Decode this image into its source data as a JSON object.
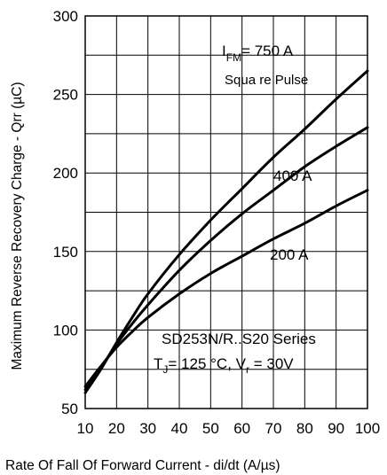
{
  "chart_data": {
    "type": "line",
    "xlabel": "Rate Of Fall Of Forward Current - di/dt (A/µs)",
    "ylabel": "Maximum Reverse Recovery Charge - Qrr (µC)",
    "xlim": [
      10,
      100
    ],
    "ylim": [
      50,
      300
    ],
    "xticks": [
      "10",
      "20",
      "30",
      "40",
      "50",
      "60",
      "70",
      "80",
      "90",
      "100"
    ],
    "yticks": [
      "50",
      "100",
      "150",
      "200",
      "250",
      "300"
    ],
    "grid": true,
    "series": [
      {
        "name": "750 A",
        "x": [
          10,
          15,
          20,
          25,
          30,
          40,
          50,
          60,
          70,
          80,
          90,
          100
        ],
        "values": [
          60,
          75,
          92,
          108,
          123,
          148,
          170,
          190,
          210,
          228,
          247,
          265
        ]
      },
      {
        "name": "400 A",
        "x": [
          10,
          15,
          20,
          25,
          30,
          40,
          50,
          60,
          70,
          80,
          90,
          100
        ],
        "values": [
          62,
          76,
          91,
          104,
          116,
          138,
          157,
          174,
          189,
          204,
          217,
          229
        ]
      },
      {
        "name": "200 A",
        "x": [
          10,
          15,
          20,
          25,
          30,
          40,
          50,
          60,
          70,
          80,
          90,
          100
        ],
        "values": [
          64,
          77,
          89,
          99,
          108,
          123,
          136,
          147,
          158,
          168,
          179,
          189
        ]
      }
    ],
    "annotations": {
      "ifm_main": "I",
      "ifm_sub": "FM",
      "ifm_value": "= 750 A",
      "pulse": "Squa re Pulse",
      "label_400": "400 A",
      "label_200": "200 A",
      "series_name": "SD253N/R..S20 Series",
      "tj_main": "T",
      "tj_sub": "J",
      "tj_value": "= 125 °C, V",
      "vr_sub": "r",
      "vr_value": " = 30V"
    }
  }
}
